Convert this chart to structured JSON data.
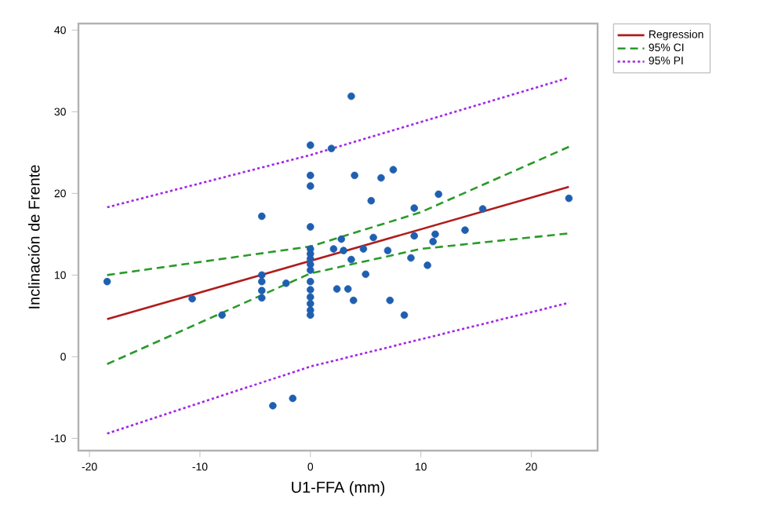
{
  "chart_data": {
    "type": "scatter",
    "xlabel": "U1-FFA (mm)",
    "ylabel": "Inclinación de Frente",
    "xlim": [
      -21,
      26
    ],
    "ylim": [
      -11.5,
      40.8
    ],
    "xticks": [
      -20,
      -10,
      0,
      10,
      20
    ],
    "yticks": [
      -10,
      0,
      10,
      20,
      30,
      40
    ],
    "grid": false,
    "legend": "top right",
    "series": [
      {
        "marker": "circle",
        "color": "#1f5fb0",
        "x": [
          3.7,
          0,
          1.9,
          0,
          0,
          4.0,
          6.4,
          7.5,
          -4.4,
          5.5,
          9.4,
          11.6,
          15.6,
          23.4,
          0,
          2.8,
          5.7,
          9.4,
          11.3,
          11.1,
          14.0,
          0,
          0,
          0,
          0,
          0,
          2.1,
          3.0,
          4.8,
          7.0,
          3.7,
          9.1,
          10.6,
          5.0,
          -4.4,
          -4.4,
          -4.4,
          -4.4,
          -2.2,
          -18.4,
          -10.7,
          -8.0,
          0,
          0,
          0,
          0,
          0,
          0,
          2.4,
          3.4,
          3.9,
          7.2,
          8.5,
          -3.4,
          -1.6
        ],
        "values": [
          31.9,
          25.9,
          25.5,
          22.2,
          20.9,
          22.2,
          21.9,
          22.9,
          17.2,
          19.1,
          18.2,
          19.9,
          18.1,
          19.4,
          15.9,
          14.4,
          14.6,
          14.8,
          15.0,
          14.1,
          15.5,
          13.2,
          12.6,
          12.0,
          11.3,
          10.6,
          13.2,
          13.0,
          13.2,
          13.0,
          11.9,
          12.1,
          11.2,
          10.1,
          10.0,
          9.2,
          8.1,
          7.2,
          9.0,
          9.2,
          7.1,
          5.1,
          9.2,
          8.2,
          7.3,
          6.5,
          5.7,
          5.1,
          8.3,
          8.3,
          6.9,
          6.9,
          5.1,
          -6.0,
          -5.1
        ]
      },
      {
        "type": "line",
        "name": "Regression",
        "line_style": "solid",
        "color": "#b01c1c",
        "x": [
          -18.4,
          23.4
        ],
        "values": [
          4.6,
          20.8
        ]
      },
      {
        "type": "line",
        "name": "95% CI",
        "line_style": "dashed",
        "color": "#2a9a2a",
        "x": [
          -18.4,
          0,
          10,
          23.4
        ],
        "values": [
          10.0,
          13.5,
          17.7,
          25.7
        ]
      },
      {
        "type": "line",
        "line_style": "dashed",
        "color": "#2a9a2a",
        "x": [
          -18.4,
          0,
          10,
          23.4
        ],
        "values": [
          -0.9,
          10.2,
          13.2,
          15.1
        ]
      },
      {
        "type": "line",
        "name": "95% PI",
        "line_style": "dotted",
        "color": "#a226e6",
        "x": [
          -18.4,
          0,
          23,
          23.4
        ],
        "values": [
          18.3,
          24.7,
          34.0,
          34.2
        ]
      },
      {
        "type": "line",
        "line_style": "dotted",
        "color": "#a226e6",
        "x": [
          -18.4,
          0,
          23.4
        ],
        "values": [
          -9.4,
          -1.2,
          6.6
        ]
      }
    ]
  }
}
